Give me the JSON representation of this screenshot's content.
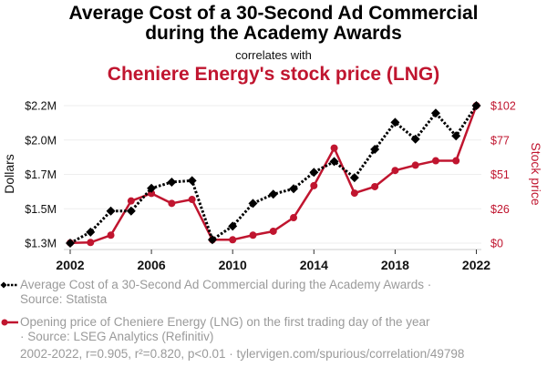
{
  "header": {
    "title_line1": "Average Cost of a 30-Second Ad Commercial",
    "title_line2": "during the Academy Awards",
    "subtitle": "correlates with",
    "title2": "Cheniere Energy's stock price (LNG)"
  },
  "colors": {
    "series1": "#000000",
    "series2": "#c0152f",
    "legend_text": "#9a9a9a",
    "grid": "#eeeeee"
  },
  "chart_data": {
    "type": "line",
    "title": "Average Cost of a 30-Second Ad Commercial during the Academy Awards correlates with Cheniere Energy's stock price (LNG)",
    "x": [
      2002,
      2003,
      2004,
      2005,
      2006,
      2007,
      2008,
      2009,
      2010,
      2011,
      2012,
      2013,
      2014,
      2015,
      2016,
      2017,
      2018,
      2019,
      2020,
      2021,
      2022
    ],
    "xlim": [
      2002,
      2022
    ],
    "x_ticks": [
      "2002",
      "2006",
      "2010",
      "2014",
      "2018",
      "2022"
    ],
    "x_tick_values": [
      2002,
      2006,
      2010,
      2014,
      2018,
      2022
    ],
    "ylabel_left": "Dollars",
    "ylabel_right": "Stock price",
    "y_left_ticks": [
      "$1.3M",
      "$1.5M",
      "$1.7M",
      "$2.0M",
      "$2.2M"
    ],
    "y_left_range": [
      1.27,
      2.2
    ],
    "y_right_ticks": [
      "$0",
      "$26",
      "$51",
      "$77",
      "$102"
    ],
    "y_right_range": [
      0,
      102
    ],
    "grid": true,
    "legend_position": "bottom",
    "series": [
      {
        "name": "Average Cost of a 30-Second Ad Commercial during the Academy Awards",
        "axis": "left",
        "unit": "millions USD",
        "style": "dotted-black-diamond",
        "values": [
          1.27,
          1.345,
          1.487,
          1.487,
          1.641,
          1.683,
          1.693,
          1.293,
          1.385,
          1.539,
          1.601,
          1.638,
          1.749,
          1.822,
          1.713,
          1.904,
          2.087,
          1.974,
          2.149,
          1.995,
          2.2
        ]
      },
      {
        "name": "Opening price of Cheniere Energy (LNG) on the first trading day of the year",
        "axis": "right",
        "unit": "USD",
        "style": "solid-red-circle",
        "values": [
          0.2,
          0.5,
          5.9,
          31.3,
          36.9,
          29.5,
          32.4,
          2.5,
          2.5,
          5.9,
          8.8,
          18.9,
          42.6,
          70.5,
          37.1,
          41.9,
          53.9,
          57.8,
          61.1,
          61.1,
          102.0
        ]
      }
    ]
  },
  "legend": {
    "items": [
      {
        "line1": "Average Cost of a 30-Second Ad Commercial during the Academy Awards ·",
        "line2": "Source: Statista"
      },
      {
        "line1": "Opening price of Cheniere Energy (LNG) on the first trading day of the year",
        "line2": "· Source: LSEG Analytics (Refinitiv)"
      }
    ]
  },
  "footer": "2002-2022, r=0.905, r²=0.820, p<0.01 · tylervigen.com/spurious/correlation/49798"
}
